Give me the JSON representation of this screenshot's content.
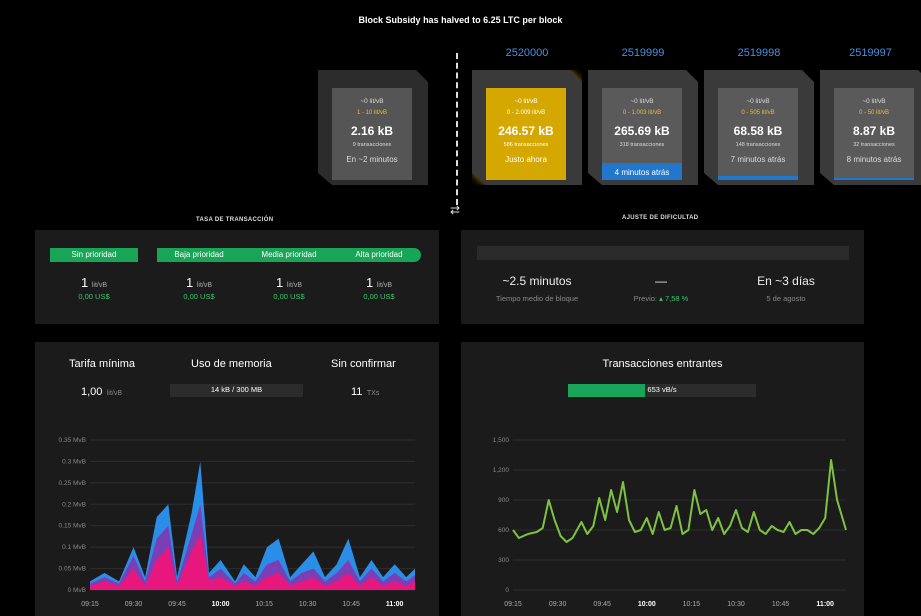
{
  "banner": "Block Subsidy has halved to 6.25 LTC per block",
  "blocks": [
    {
      "number": "",
      "fee": "~0 lit/vB",
      "range": "1 - 10 lit/vB",
      "size": "2.16 kB",
      "tx": "9 transacciones",
      "time": "En ~2 minutos",
      "state": "pending"
    },
    {
      "number": "2520000",
      "fee": "~0 lit/vB",
      "range": "0 - 2.009 lit/vB",
      "size": "246.57 kB",
      "tx": "586 transacciones",
      "time": "Justo ahora",
      "state": "latest"
    },
    {
      "number": "2519999",
      "fee": "~0 lit/vB",
      "range": "0 - 1.003 lit/vB",
      "size": "265.69 kB",
      "tx": "318 transacciones",
      "time": "4 minutos atrás",
      "state": "mined"
    },
    {
      "number": "2519998",
      "fee": "~0 lit/vB",
      "range": "0 - 505 lit/vB",
      "size": "68.58 kB",
      "tx": "148 transacciones",
      "time": "7 minutos atrás",
      "state": "mined"
    },
    {
      "number": "2519997",
      "fee": "~0 lit/vB",
      "range": "0 - 50 lit/vB",
      "size": "8.87 kB",
      "tx": "32 transacciones",
      "time": "8 minutos atrás",
      "state": "mined"
    }
  ],
  "swap_icon": "⇄",
  "fees": {
    "title": "TASA DE TRANSACCIÓN",
    "columns": [
      {
        "label": "Sin prioridad",
        "value": "1",
        "unit": "lit/vB",
        "usd": "0,00 US$"
      },
      {
        "label": "Baja prioridad",
        "value": "1",
        "unit": "lit/vB",
        "usd": "0,00 US$"
      },
      {
        "label": "Media prioridad",
        "value": "1",
        "unit": "lit/vB",
        "usd": "0,00 US$"
      },
      {
        "label": "Alta prioridad",
        "value": "1",
        "unit": "lit/vB",
        "usd": "0,00 US$"
      }
    ]
  },
  "difficulty": {
    "title": "AJUSTE DE DIFICULTAD",
    "avg_time": "~2.5 minutos",
    "avg_label": "Tiempo medio de bloque",
    "change": "—",
    "prev_label": "Previo:",
    "prev_value": "7,58 %",
    "eta": "En ~3 días",
    "eta_date": "5 de agosto"
  },
  "mempool": {
    "min_fee_label": "Tarifa mínima",
    "min_fee_value": "1,00",
    "min_fee_unit": "lit/vB",
    "memory_label": "Uso de memoria",
    "memory_value": "14 kB / 300 MB",
    "unconfirmed_label": "Sin confirmar",
    "unconfirmed_value": "11",
    "unconfirmed_unit": "TXs"
  },
  "incoming": {
    "title": "Transacciones entrantes",
    "rate": "653 vB/s",
    "rate_fraction": 0.41
  },
  "colors": {
    "accent_green": "#18a558",
    "block_blue": "#2277cc",
    "latest_gold": "#e8b800",
    "line_green": "#7dc242"
  },
  "chart_data": [
    {
      "type": "area",
      "yticks": [
        "0 MvB",
        "0.05 MvB",
        "0.1 MvB",
        "0.15 MvB",
        "0.2 MvB",
        "0.25 MvB",
        "0.3 MvB",
        "0.35 MvB"
      ],
      "ylim": [
        0,
        0.35
      ],
      "xticks": [
        "09:15",
        "09:30",
        "09:45",
        "10:00",
        "10:15",
        "10:30",
        "10:45",
        "11:00"
      ],
      "xticks_bold": [
        "10:00",
        "11:00"
      ],
      "x_start_min": 555,
      "x_end_min": 667,
      "series": [
        {
          "color": "#e8177d",
          "points": [
            [
              555,
              0.01
            ],
            [
              560,
              0.02
            ],
            [
              565,
              0.01
            ],
            [
              570,
              0.05
            ],
            [
              574,
              0.01
            ],
            [
              578,
              0.07
            ],
            [
              582,
              0.1
            ],
            [
              585,
              0.01
            ],
            [
              590,
              0.09
            ],
            [
              593,
              0.13
            ],
            [
              596,
              0.02
            ],
            [
              600,
              0.03
            ],
            [
              605,
              0.01
            ],
            [
              608,
              0.02
            ],
            [
              612,
              0.01
            ],
            [
              616,
              0.03
            ],
            [
              620,
              0.04
            ],
            [
              624,
              0.01
            ],
            [
              628,
              0.02
            ],
            [
              632,
              0.03
            ],
            [
              636,
              0.01
            ],
            [
              640,
              0.02
            ],
            [
              644,
              0.04
            ],
            [
              648,
              0.01
            ],
            [
              652,
              0.03
            ],
            [
              656,
              0.01
            ],
            [
              660,
              0.02
            ],
            [
              664,
              0.01
            ],
            [
              667,
              0.02
            ]
          ]
        },
        {
          "color": "#7b3fb5",
          "points": [
            [
              555,
              0.015
            ],
            [
              560,
              0.03
            ],
            [
              565,
              0.015
            ],
            [
              570,
              0.08
            ],
            [
              574,
              0.02
            ],
            [
              578,
              0.12
            ],
            [
              582,
              0.15
            ],
            [
              585,
              0.02
            ],
            [
              590,
              0.13
            ],
            [
              593,
              0.2
            ],
            [
              596,
              0.03
            ],
            [
              600,
              0.05
            ],
            [
              605,
              0.015
            ],
            [
              608,
              0.04
            ],
            [
              612,
              0.02
            ],
            [
              616,
              0.06
            ],
            [
              620,
              0.07
            ],
            [
              624,
              0.02
            ],
            [
              628,
              0.04
            ],
            [
              632,
              0.05
            ],
            [
              636,
              0.02
            ],
            [
              640,
              0.04
            ],
            [
              644,
              0.07
            ],
            [
              648,
              0.02
            ],
            [
              652,
              0.05
            ],
            [
              656,
              0.02
            ],
            [
              660,
              0.04
            ],
            [
              664,
              0.02
            ],
            [
              667,
              0.035
            ]
          ]
        },
        {
          "color": "#2a8ee8",
          "points": [
            [
              555,
              0.02
            ],
            [
              560,
              0.04
            ],
            [
              565,
              0.02
            ],
            [
              570,
              0.1
            ],
            [
              574,
              0.03
            ],
            [
              578,
              0.17
            ],
            [
              582,
              0.2
            ],
            [
              585,
              0.03
            ],
            [
              590,
              0.18
            ],
            [
              593,
              0.3
            ],
            [
              596,
              0.04
            ],
            [
              600,
              0.07
            ],
            [
              605,
              0.02
            ],
            [
              608,
              0.06
            ],
            [
              612,
              0.03
            ],
            [
              616,
              0.1
            ],
            [
              620,
              0.12
            ],
            [
              624,
              0.03
            ],
            [
              628,
              0.06
            ],
            [
              632,
              0.09
            ],
            [
              636,
              0.03
            ],
            [
              640,
              0.06
            ],
            [
              644,
              0.12
            ],
            [
              648,
              0.03
            ],
            [
              652,
              0.07
            ],
            [
              656,
              0.03
            ],
            [
              660,
              0.06
            ],
            [
              664,
              0.03
            ],
            [
              667,
              0.05
            ]
          ]
        }
      ]
    },
    {
      "type": "line",
      "yticks": [
        "0",
        "300",
        "600",
        "900",
        "1,200",
        "1,500"
      ],
      "ylim": [
        0,
        1500
      ],
      "xticks": [
        "09:15",
        "09:30",
        "09:45",
        "10:00",
        "10:15",
        "10:30",
        "10:45",
        "11:00"
      ],
      "xticks_bold": [
        "10:00",
        "11:00"
      ],
      "x_start_min": 555,
      "x_end_min": 667,
      "series": [
        {
          "color": "#7dc242",
          "points": [
            [
              555,
              600
            ],
            [
              557,
              520
            ],
            [
              560,
              560
            ],
            [
              563,
              580
            ],
            [
              565,
              620
            ],
            [
              567,
              900
            ],
            [
              569,
              700
            ],
            [
              571,
              540
            ],
            [
              573,
              480
            ],
            [
              575,
              520
            ],
            [
              578,
              680
            ],
            [
              580,
              560
            ],
            [
              582,
              640
            ],
            [
              584,
              920
            ],
            [
              586,
              700
            ],
            [
              588,
              1000
            ],
            [
              590,
              780
            ],
            [
              592,
              1080
            ],
            [
              594,
              700
            ],
            [
              596,
              580
            ],
            [
              598,
              600
            ],
            [
              600,
              720
            ],
            [
              602,
              560
            ],
            [
              604,
              780
            ],
            [
              606,
              600
            ],
            [
              608,
              620
            ],
            [
              610,
              840
            ],
            [
              612,
              560
            ],
            [
              614,
              600
            ],
            [
              616,
              1000
            ],
            [
              618,
              760
            ],
            [
              620,
              800
            ],
            [
              622,
              600
            ],
            [
              624,
              720
            ],
            [
              626,
              560
            ],
            [
              628,
              640
            ],
            [
              630,
              800
            ],
            [
              632,
              620
            ],
            [
              634,
              580
            ],
            [
              636,
              780
            ],
            [
              638,
              600
            ],
            [
              640,
              560
            ],
            [
              642,
              640
            ],
            [
              644,
              600
            ],
            [
              646,
              580
            ],
            [
              648,
              680
            ],
            [
              650,
              560
            ],
            [
              652,
              600
            ],
            [
              654,
              600
            ],
            [
              656,
              560
            ],
            [
              658,
              620
            ],
            [
              660,
              720
            ],
            [
              662,
              1300
            ],
            [
              664,
              900
            ],
            [
              667,
              600
            ]
          ]
        }
      ]
    }
  ]
}
